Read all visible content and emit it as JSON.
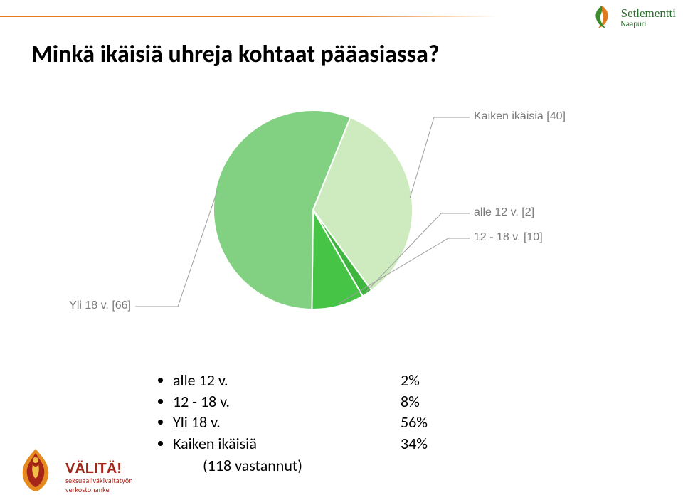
{
  "header": {
    "accent_color": "#e67a1a",
    "brand": {
      "name": "Setlementti",
      "sub": "Naapuri",
      "color": "#2b6e2e"
    }
  },
  "title": "Minkä ikäisiä uhreja kohtaat pääasiassa?",
  "chart": {
    "type": "pie",
    "radius": 140,
    "background_color": "#ffffff",
    "label_fontsize": 16,
    "label_color": "#7a7a7a",
    "stroke_color": "#ffffff",
    "stroke_width": 2,
    "leader_color": "#9e9e9e",
    "slices": [
      {
        "key": "kaiken",
        "label": "Kaiken ikäisiä [40]",
        "value": 40,
        "color": "#cdebbe"
      },
      {
        "key": "alle12",
        "label": "alle 12 v. [2]",
        "value": 2,
        "color": "#3fb63f"
      },
      {
        "key": "12_18",
        "label": "12 - 18 v. [10]",
        "value": 10,
        "color": "#45c445"
      },
      {
        "key": "yli18",
        "label": "Yli 18 v. [66]",
        "value": 66,
        "color": "#82d082"
      }
    ],
    "start_angle_deg": -68
  },
  "bullets": {
    "items": [
      {
        "label": "alle 12 v.",
        "value": "2%"
      },
      {
        "label": "12 - 18 v.",
        "value": "8%"
      },
      {
        "label": "Yli 18 v.",
        "value": "56%"
      },
      {
        "label": "Kaiken ikäisiä",
        "value": "34%"
      }
    ],
    "respondents": "(118 vastannut)",
    "fontsize": 22
  },
  "footer_left": {
    "title": "VÄLITÄ!",
    "sub1": "seksuaaliväkivaltatyön",
    "sub2": "verkostohanke",
    "color": "#a52518"
  }
}
